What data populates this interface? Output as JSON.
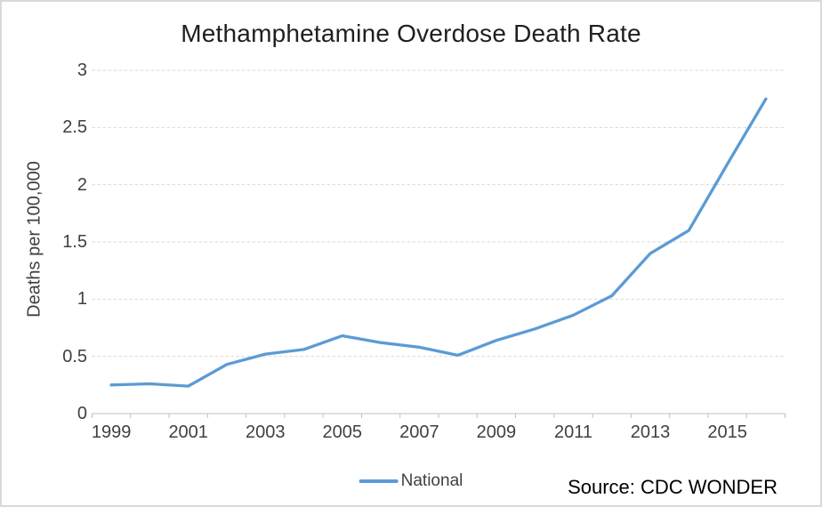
{
  "colors": {
    "line": "#5B9BD5",
    "gridline": "#D9D9D9",
    "axis_line": "#BFBFBF",
    "tick_text": "#404040",
    "title_text": "#1F1F1F",
    "frame_border": "#D9D9D9"
  },
  "chart_data": {
    "type": "line",
    "title": "Methamphetamine Overdose Death Rate",
    "xlabel": "",
    "ylabel": "Deaths per 100,000",
    "x": [
      1999,
      2000,
      2001,
      2002,
      2003,
      2004,
      2005,
      2006,
      2007,
      2008,
      2009,
      2010,
      2011,
      2012,
      2013,
      2014,
      2015,
      2016
    ],
    "series": [
      {
        "name": "National",
        "color": "#5B9BD5",
        "values": [
          0.25,
          0.26,
          0.24,
          0.43,
          0.52,
          0.56,
          0.68,
          0.62,
          0.58,
          0.51,
          0.64,
          0.74,
          0.86,
          1.03,
          1.4,
          1.6,
          2.18,
          2.75
        ]
      }
    ],
    "ylim": [
      0,
      3
    ],
    "y_ticks": [
      0,
      0.5,
      1,
      1.5,
      2,
      2.5,
      3
    ],
    "x_tick_labels": [
      "1999",
      "2001",
      "2003",
      "2005",
      "2007",
      "2009",
      "2011",
      "2013",
      "2015"
    ],
    "grid": true,
    "legend_position": "bottom-center",
    "source": "Source: CDC WONDER"
  }
}
